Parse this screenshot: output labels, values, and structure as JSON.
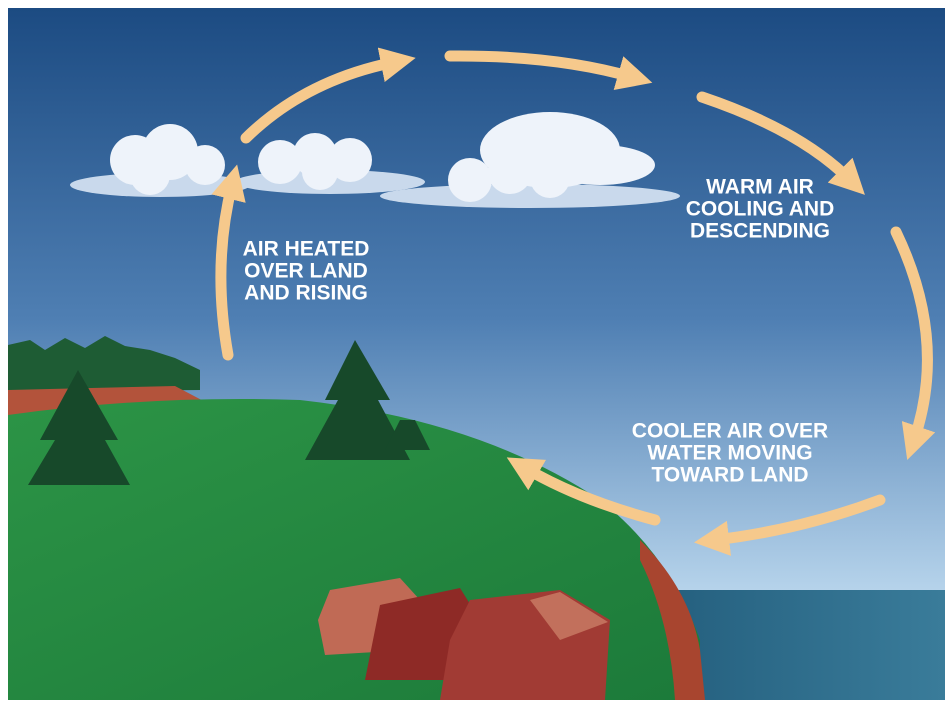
{
  "labels": [
    {
      "lines": [
        "AIR HEATED",
        "OVER LAND",
        "AND RISING"
      ]
    },
    {
      "lines": [
        "WARM AIR",
        "COOLING AND",
        "DESCENDING"
      ]
    },
    {
      "lines": [
        "COOLER AIR OVER",
        "WATER MOVING",
        "TOWARD LAND"
      ]
    }
  ]
}
